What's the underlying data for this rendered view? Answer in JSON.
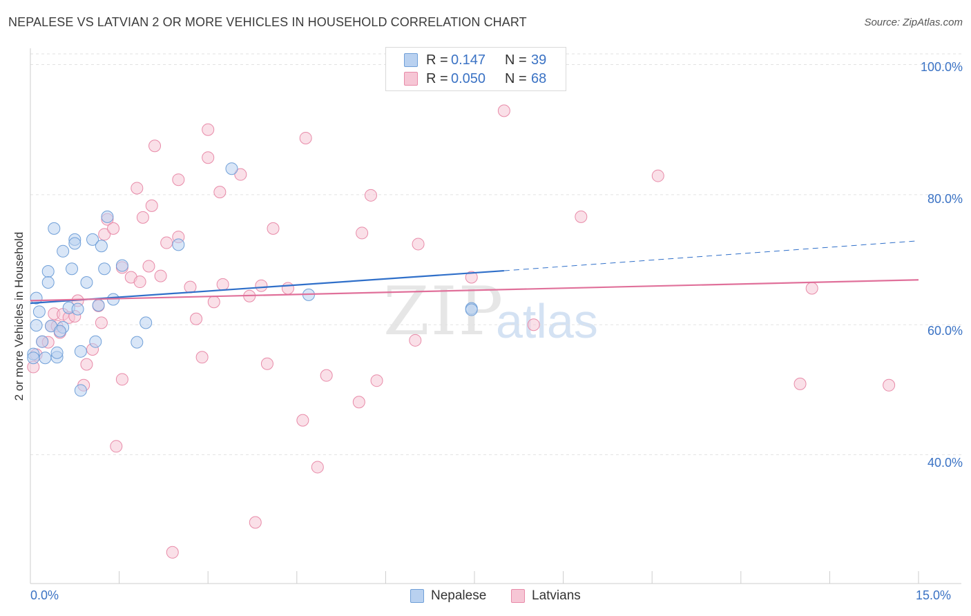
{
  "title": "NEPALESE VS LATVIAN 2 OR MORE VEHICLES IN HOUSEHOLD CORRELATION CHART",
  "source": "Source: ZipAtlas.com",
  "watermark": {
    "zip": "ZIP",
    "atlas": "atlas"
  },
  "colors": {
    "nepalese": "#6f9fd8",
    "nepalese_fill": "#b9d1f0",
    "latvians": "#e88aa8",
    "latvians_fill": "#f6c6d5",
    "nepalese_line": "#2f6fc9",
    "latvians_line": "#e0709a",
    "accent": "#3a72c4"
  },
  "legend": {
    "rows": [
      {
        "r_label": "R =",
        "r_value": "0.147",
        "n_label": "N =",
        "n_value": "39"
      },
      {
        "r_label": "R =",
        "r_value": "0.050",
        "n_label": "N =",
        "n_value": "68"
      }
    ]
  },
  "bottom_legend": {
    "nepalese": "Nepalese",
    "latvians": "Latvians"
  },
  "y_axis_label": "2 or more Vehicles in Household",
  "y_ticks": [
    "100.0%",
    "80.0%",
    "60.0%",
    "40.0%"
  ],
  "x_ticks": {
    "left": "0.0%",
    "right": "15.0%"
  },
  "chart_data": {
    "type": "scatter",
    "title": "NEPALESE VS LATVIAN 2 OR MORE VEHICLES IN HOUSEHOLD CORRELATION CHART",
    "xlabel": "",
    "ylabel": "2 or more Vehicles in Household",
    "xlim": [
      0,
      15
    ],
    "ylim": [
      20.2,
      102.5
    ],
    "y_gridlines": [
      40,
      60,
      80,
      100
    ],
    "series": [
      {
        "name": "Nepalese",
        "R": 0.147,
        "N": 39,
        "trend": {
          "x": [
            0,
            8.0
          ],
          "y": [
            63.3,
            68.3
          ],
          "dashed_to": [
            15.0,
            72.9
          ]
        },
        "points": [
          [
            0.1,
            64.1
          ],
          [
            0.15,
            62.0
          ],
          [
            0.1,
            59.9
          ],
          [
            0.2,
            57.4
          ],
          [
            0.05,
            55.5
          ],
          [
            0.25,
            54.9
          ],
          [
            0.3,
            68.2
          ],
          [
            0.3,
            66.5
          ],
          [
            0.35,
            59.8
          ],
          [
            0.4,
            74.8
          ],
          [
            0.45,
            55.0
          ],
          [
            0.45,
            55.7
          ],
          [
            0.55,
            71.3
          ],
          [
            0.55,
            59.6
          ],
          [
            0.5,
            59.0
          ],
          [
            0.65,
            62.6
          ],
          [
            0.7,
            68.6
          ],
          [
            0.75,
            73.1
          ],
          [
            0.75,
            72.5
          ],
          [
            0.8,
            62.4
          ],
          [
            0.85,
            49.9
          ],
          [
            0.85,
            55.9
          ],
          [
            0.95,
            66.5
          ],
          [
            1.05,
            73.1
          ],
          [
            1.1,
            57.4
          ],
          [
            1.15,
            63.0
          ],
          [
            1.2,
            72.1
          ],
          [
            1.25,
            68.6
          ],
          [
            1.3,
            76.6
          ],
          [
            1.4,
            63.9
          ],
          [
            1.55,
            69.1
          ],
          [
            1.8,
            57.3
          ],
          [
            1.95,
            60.3
          ],
          [
            2.5,
            72.3
          ],
          [
            3.4,
            84.0
          ],
          [
            4.7,
            64.6
          ],
          [
            7.45,
            62.5
          ],
          [
            7.45,
            62.3
          ],
          [
            0.05,
            54.9
          ]
        ]
      },
      {
        "name": "Latvians",
        "R": 0.05,
        "N": 68,
        "trend": {
          "x": [
            0,
            15.0
          ],
          "y": [
            63.7,
            66.9
          ]
        },
        "points": [
          [
            0.05,
            53.5
          ],
          [
            0.1,
            55.4
          ],
          [
            0.2,
            57.4
          ],
          [
            0.3,
            57.3
          ],
          [
            0.35,
            59.8
          ],
          [
            0.4,
            61.7
          ],
          [
            0.45,
            59.8
          ],
          [
            0.5,
            58.8
          ],
          [
            0.55,
            61.6
          ],
          [
            0.65,
            61.1
          ],
          [
            0.75,
            61.3
          ],
          [
            0.8,
            63.7
          ],
          [
            0.9,
            50.7
          ],
          [
            0.95,
            53.9
          ],
          [
            1.05,
            56.2
          ],
          [
            1.15,
            62.9
          ],
          [
            1.2,
            60.3
          ],
          [
            1.25,
            73.9
          ],
          [
            1.3,
            76.2
          ],
          [
            1.4,
            74.8
          ],
          [
            1.45,
            41.3
          ],
          [
            1.55,
            68.8
          ],
          [
            1.55,
            51.6
          ],
          [
            1.7,
            67.3
          ],
          [
            1.8,
            81.0
          ],
          [
            1.85,
            66.6
          ],
          [
            1.9,
            76.5
          ],
          [
            2.0,
            69.0
          ],
          [
            2.05,
            78.3
          ],
          [
            2.1,
            87.5
          ],
          [
            2.2,
            67.5
          ],
          [
            2.3,
            72.6
          ],
          [
            2.4,
            25.0
          ],
          [
            2.5,
            73.5
          ],
          [
            2.5,
            82.3
          ],
          [
            2.7,
            65.8
          ],
          [
            2.8,
            60.9
          ],
          [
            2.9,
            55.0
          ],
          [
            3.0,
            85.7
          ],
          [
            3.0,
            90.0
          ],
          [
            3.1,
            63.5
          ],
          [
            3.2,
            80.4
          ],
          [
            3.25,
            66.2
          ],
          [
            3.55,
            83.1
          ],
          [
            3.7,
            64.4
          ],
          [
            3.8,
            29.6
          ],
          [
            3.9,
            66.0
          ],
          [
            4.0,
            54.0
          ],
          [
            4.1,
            74.8
          ],
          [
            4.35,
            65.6
          ],
          [
            4.6,
            45.3
          ],
          [
            4.65,
            88.7
          ],
          [
            4.85,
            38.1
          ],
          [
            5.0,
            52.2
          ],
          [
            5.55,
            48.1
          ],
          [
            5.6,
            74.1
          ],
          [
            5.75,
            79.9
          ],
          [
            5.85,
            51.4
          ],
          [
            6.5,
            57.6
          ],
          [
            6.55,
            72.4
          ],
          [
            7.45,
            67.3
          ],
          [
            8.0,
            92.9
          ],
          [
            8.5,
            60.0
          ],
          [
            9.3,
            76.6
          ],
          [
            10.6,
            82.9
          ],
          [
            13.0,
            50.9
          ],
          [
            13.2,
            65.6
          ],
          [
            14.5,
            50.7
          ]
        ]
      }
    ]
  }
}
